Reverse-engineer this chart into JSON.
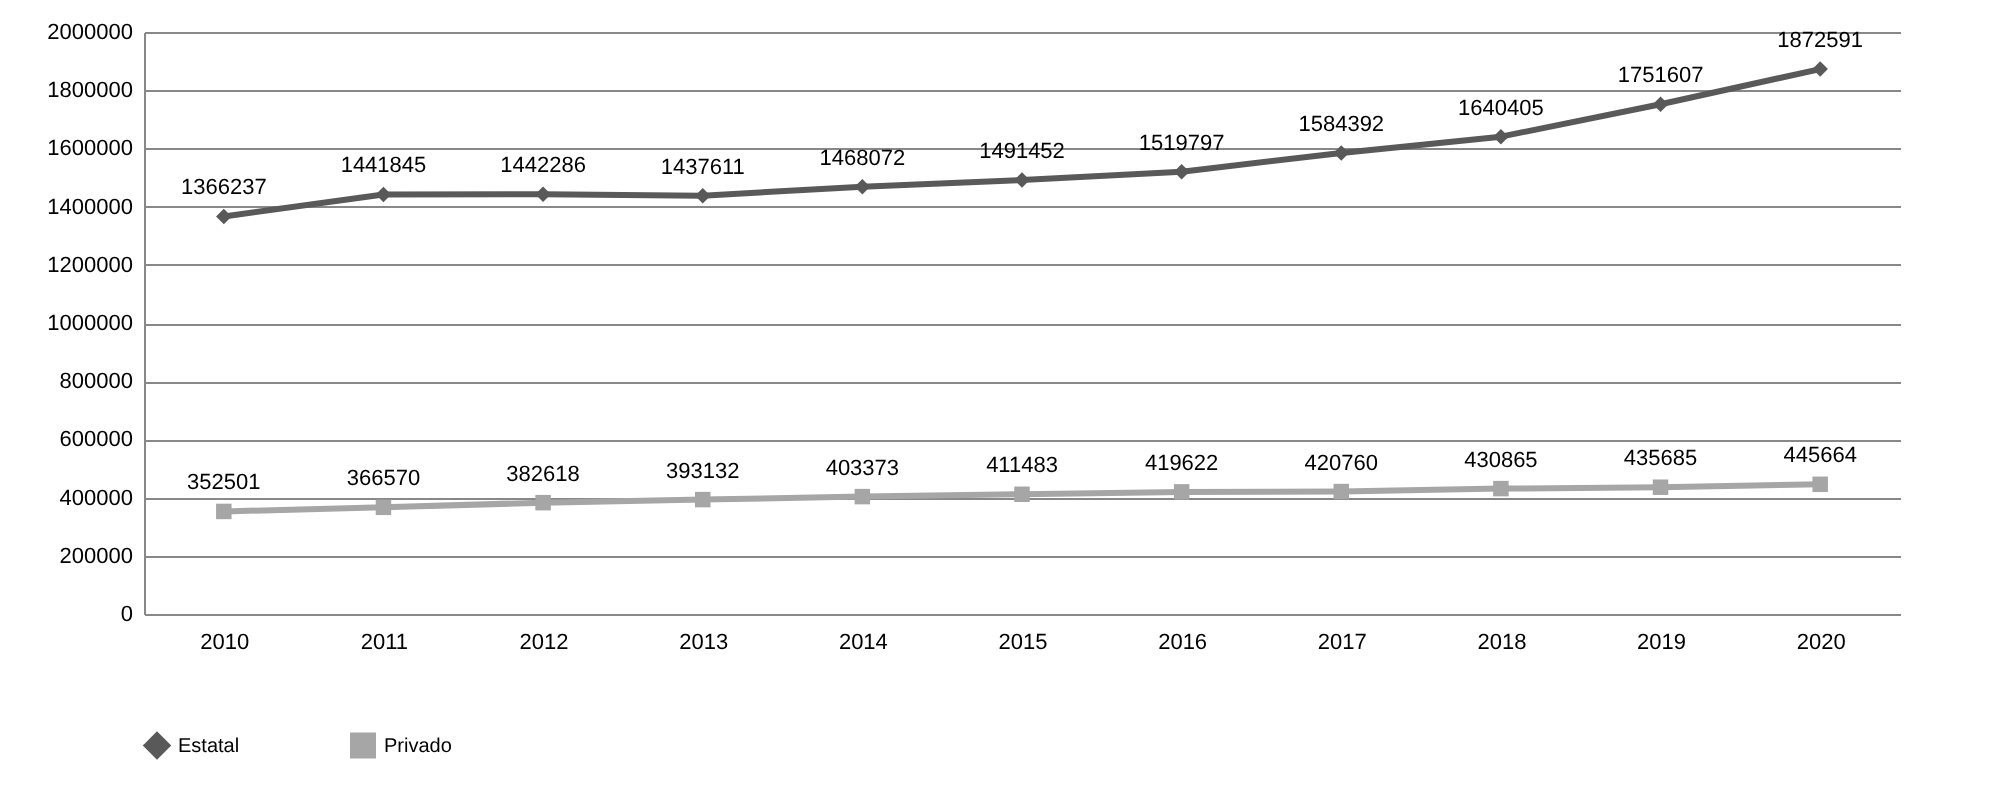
{
  "chart_data": {
    "type": "line",
    "categories": [
      "2010",
      "2011",
      "2012",
      "2013",
      "2014",
      "2015",
      "2016",
      "2017",
      "2018",
      "2019",
      "2020"
    ],
    "series": [
      {
        "name": "Estatal",
        "color": "#595959",
        "marker": "diamond",
        "values": [
          1366237,
          1441845,
          1442286,
          1437611,
          1468072,
          1491452,
          1519797,
          1584392,
          1640405,
          1751607,
          1872591
        ]
      },
      {
        "name": "Privado",
        "color": "#a6a6a6",
        "marker": "square",
        "values": [
          352501,
          366570,
          382618,
          393132,
          403373,
          411483,
          419622,
          420760,
          430865,
          435685,
          445664
        ]
      }
    ],
    "ylim": [
      0,
      2000000
    ],
    "yticks": [
      0,
      200000,
      400000,
      600000,
      800000,
      1000000,
      1200000,
      1400000,
      1600000,
      1800000,
      2000000
    ],
    "grid": "y",
    "legend": "bottom",
    "data_labels": true
  }
}
